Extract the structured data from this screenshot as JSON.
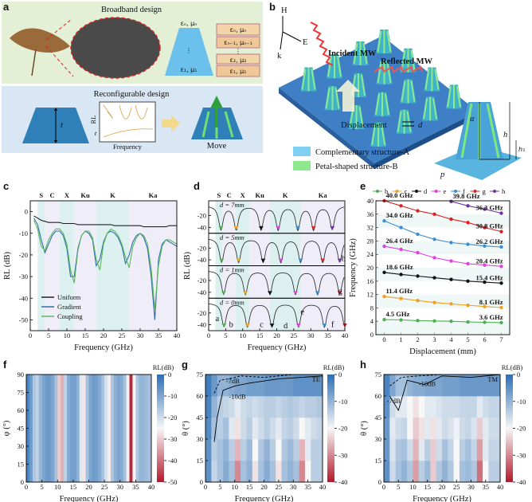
{
  "panel_labels": [
    "a",
    "b",
    "c",
    "d",
    "e",
    "f",
    "g",
    "h"
  ],
  "panel_a": {
    "title_top": "Broadband design",
    "title_bottom": "Reconfigurable design",
    "cone_labels": [
      "εₙ, μₙ",
      "⋮",
      "ε₁, μ₁"
    ],
    "layers": [
      "εₙ, μₙ",
      "εₙ₋₁, μₙ₋₁",
      "⋮",
      "ε₂, μ₂",
      "ε₁, μ₁"
    ],
    "inset_y": "RL",
    "inset_x": "Frequency",
    "inset_t": "t",
    "thickness": "t",
    "move": "Move"
  },
  "panel_b": {
    "axes": [
      "H",
      "E",
      "k"
    ],
    "incident": "Incident MW",
    "reflected": "Reflected MW",
    "displacement": "Displacement",
    "d": "d",
    "dims": [
      "α",
      "h",
      "h₁",
      "p"
    ],
    "legend": [
      {
        "name": "Complementary structure-A",
        "color": "#7fd0f0"
      },
      {
        "name": "Petal-shaped structure-B",
        "color": "#8ee88e"
      }
    ]
  },
  "chart_data": [
    {
      "type": "line",
      "xlabel": "Frequency (GHz)",
      "ylabel": "RL (dB)",
      "xlim": [
        0,
        40
      ],
      "xticks": [
        0,
        5,
        10,
        15,
        20,
        25,
        30,
        35,
        40
      ],
      "ylim": [
        -55,
        5
      ],
      "yticks": [
        0,
        -10,
        -20,
        -30,
        -40,
        -50
      ],
      "bands": [
        {
          "name": "S",
          "range": [
            2,
            4
          ]
        },
        {
          "name": "C",
          "range": [
            4,
            8
          ]
        },
        {
          "name": "X",
          "range": [
            8,
            12
          ]
        },
        {
          "name": "Ku",
          "range": [
            12,
            18
          ]
        },
        {
          "name": "K",
          "range": [
            18,
            27
          ]
        },
        {
          "name": "Ka",
          "range": [
            27,
            40
          ]
        }
      ],
      "band_colors": [
        "#dcf1ef",
        "#efedf7"
      ],
      "legend": "lower left",
      "x": [
        1,
        2,
        3,
        4,
        5,
        6,
        7,
        8,
        9,
        10,
        11,
        12,
        13,
        14,
        15,
        16,
        17,
        18,
        19,
        20,
        21,
        22,
        23,
        24,
        25,
        26,
        27,
        28,
        29,
        30,
        31,
        32,
        33,
        34,
        35,
        36,
        37,
        38,
        39,
        40
      ],
      "series": [
        {
          "name": "Uniform",
          "color": "#222222",
          "values": [
            -2,
            -3,
            -4,
            -4.5,
            -5,
            -5,
            -5,
            -5,
            -5.5,
            -5.5,
            -5.5,
            -5.5,
            -6,
            -6,
            -6,
            -6,
            -6,
            -6,
            -6,
            -6,
            -6,
            -6,
            -6.5,
            -6.5,
            -6.5,
            -6.5,
            -6.5,
            -6.5,
            -6.5,
            -6.5,
            -7,
            -7,
            -7,
            -7,
            -7,
            -7,
            -7,
            -6.5,
            -6.5,
            -6.5
          ]
        },
        {
          "name": "Gradient",
          "color": "#2f6fa8",
          "values": [
            -3,
            -6,
            -13,
            -19,
            -15,
            -11,
            -9,
            -9,
            -11,
            -17,
            -30,
            -30,
            -17,
            -11,
            -9,
            -10,
            -13,
            -25,
            -22,
            -14,
            -10,
            -9,
            -10,
            -12,
            -16,
            -24,
            -20,
            -14,
            -11,
            -10,
            -12,
            -17,
            -30,
            -50,
            -22,
            -15,
            -13,
            -14,
            -15,
            -16
          ]
        },
        {
          "name": "Coupling",
          "color": "#5cb85c",
          "values": [
            -4,
            -8,
            -16,
            -18,
            -13,
            -10,
            -8,
            -8,
            -10,
            -15,
            -27,
            -33,
            -18,
            -11,
            -9,
            -9,
            -12,
            -22,
            -27,
            -15,
            -10,
            -8,
            -9,
            -11,
            -15,
            -21,
            -26,
            -16,
            -12,
            -10,
            -11,
            -15,
            -26,
            -45,
            -25,
            -16,
            -13,
            -13,
            -14,
            -15
          ]
        }
      ]
    },
    {
      "type": "resonance",
      "xlabel": "Frequency (GHz)",
      "ylabel": "RL (dB)",
      "xlim": [
        0,
        40
      ],
      "xticks": [
        0,
        5,
        10,
        15,
        20,
        25,
        30,
        35,
        40
      ],
      "bands": [
        {
          "name": "S",
          "range": [
            2,
            4
          ]
        },
        {
          "name": "C",
          "range": [
            4,
            8
          ]
        },
        {
          "name": "X",
          "range": [
            8,
            12
          ]
        },
        {
          "name": "Ku",
          "range": [
            12,
            18
          ]
        },
        {
          "name": "K",
          "range": [
            18,
            27
          ]
        },
        {
          "name": "Ka",
          "range": [
            27,
            40
          ]
        }
      ],
      "band_colors": [
        "#dcf1ef",
        "#efedf7"
      ],
      "dip_colors": [
        "#4caf50",
        "#f0a020",
        "#111111",
        "#e040e0",
        "#3a8fd0",
        "#e02020",
        "#7030a0"
      ],
      "subplots": [
        {
          "label": "d = 7mm",
          "ylim": [
            -50,
            5
          ],
          "yticks": [
            -20,
            -40
          ],
          "dips": [
            3.6,
            8.1,
            15.4,
            20.4,
            26.2,
            30.8,
            36.3
          ]
        },
        {
          "label": "d = 5mm",
          "ylim": [
            -50,
            5
          ],
          "yticks": [
            -20,
            -40
          ],
          "dips": [
            3.8,
            8.8,
            16,
            21.2,
            27,
            33.5,
            38.5
          ]
        },
        {
          "label": "d = 1mm",
          "ylim": [
            -50,
            5
          ],
          "yticks": [
            -20,
            -40
          ],
          "dips": [
            4.4,
            10.8,
            18,
            25.5,
            32,
            38.5
          ]
        },
        {
          "label": "d = 0mm",
          "ylim": [
            -50,
            5
          ],
          "yticks": [
            -20,
            -40
          ],
          "dips": [
            4.5,
            11.4,
            18.6,
            26.4,
            34,
            40
          ]
        }
      ],
      "mode_labels": [
        "a",
        "b",
        "c",
        "d",
        "e",
        "f",
        "g",
        "h"
      ]
    },
    {
      "type": "line",
      "markers": true,
      "xlabel": "Displacement (mm)",
      "ylabel": "Frequency (GHz)",
      "xlim": [
        -0.5,
        7.5
      ],
      "xticks": [
        0,
        1,
        2,
        3,
        4,
        5,
        6,
        7
      ],
      "ylim": [
        0,
        40
      ],
      "yticks": [
        0,
        4,
        8,
        12,
        16,
        20,
        24,
        28,
        32,
        36,
        40
      ],
      "legend": "top",
      "x": [
        0,
        1,
        2,
        3,
        4,
        5,
        6,
        7
      ],
      "series": [
        {
          "name": "b",
          "color": "#4caf50",
          "values": [
            4.5,
            4.4,
            4.2,
            4.1,
            4.0,
            3.8,
            3.7,
            3.6
          ],
          "value_labels": [
            "4.5 GHz",
            null,
            null,
            null,
            null,
            null,
            null,
            "3.6 GHz"
          ]
        },
        {
          "name": "c",
          "color": "#f0a020",
          "values": [
            11.4,
            10.8,
            10.2,
            9.6,
            9.2,
            8.8,
            8.4,
            8.1
          ],
          "value_labels": [
            "11.4 GHz",
            null,
            null,
            null,
            null,
            null,
            null,
            "8.1 GHz"
          ]
        },
        {
          "name": "d",
          "color": "#111111",
          "values": [
            18.6,
            18,
            17.5,
            17,
            16.5,
            16,
            15.7,
            15.4
          ],
          "value_labels": [
            "18.6 GHz",
            null,
            null,
            null,
            null,
            null,
            null,
            "15.4 GHz"
          ]
        },
        {
          "name": "e",
          "color": "#e040e0",
          "values": [
            26.4,
            25.5,
            24.5,
            23,
            22,
            21.2,
            20.8,
            20.4
          ],
          "value_labels": [
            "26.4 GHz",
            null,
            null,
            null,
            null,
            null,
            null,
            "20.4 GHz"
          ]
        },
        {
          "name": "f",
          "color": "#3a8fd0",
          "values": [
            34.0,
            32,
            30,
            28.5,
            27.5,
            27,
            26.5,
            26.2
          ],
          "value_labels": [
            "34.0 GHz",
            null,
            null,
            null,
            null,
            null,
            null,
            "26.2 GHz"
          ]
        },
        {
          "name": "g",
          "color": "#e02020",
          "values": [
            40.0,
            38.5,
            37,
            36,
            34.5,
            33.5,
            32,
            30.8
          ],
          "value_labels": [
            "40.0 GHz",
            null,
            null,
            null,
            null,
            null,
            null,
            "30.8 GHz"
          ]
        },
        {
          "name": "h",
          "color": "#7030a0",
          "values": [
            null,
            null,
            null,
            null,
            39.8,
            38.5,
            37.5,
            36.3
          ],
          "value_labels": [
            null,
            null,
            null,
            null,
            "39.8 GHz",
            null,
            null,
            "36.3 GHz"
          ]
        }
      ]
    },
    {
      "type": "heatmap",
      "xlabel": "Frequency (GHz)",
      "ylabel": "φ (°)",
      "xlim": [
        0,
        40
      ],
      "xticks": [
        0,
        5,
        10,
        15,
        20,
        25,
        30,
        35,
        40
      ],
      "ylim": [
        0,
        90
      ],
      "yticks": [
        0,
        15,
        30,
        45,
        60,
        75,
        90
      ],
      "colorbar": {
        "label": "RL(dB)",
        "lim": [
          -50,
          0
        ],
        "ticks": [
          0,
          -10,
          -20,
          -30,
          -40,
          -50
        ]
      },
      "colormap": [
        "#b2182b",
        "#f7f7f7",
        "#2c6fb5"
      ],
      "xbins": [
        0,
        1,
        2,
        3,
        4,
        5,
        6,
        7,
        8,
        9,
        10,
        11,
        12,
        13,
        14,
        15,
        16,
        17,
        18,
        19,
        20,
        21,
        22,
        23,
        24,
        25,
        26,
        27,
        28,
        29,
        30,
        31,
        32,
        33,
        34,
        35,
        36,
        37,
        38,
        39,
        40
      ],
      "ybins": [
        0,
        90
      ],
      "values": [
        [
          -4,
          -8,
          -16,
          -18,
          -13,
          -10,
          -8,
          -8,
          -10,
          -15,
          -30,
          -33,
          -18,
          -11,
          -9,
          -9,
          -12,
          -22,
          -27,
          -15,
          -10,
          -8,
          -9,
          -11,
          -15,
          -21,
          -26,
          -16,
          -12,
          -10,
          -11,
          -15,
          -26,
          -48,
          -25,
          -16,
          -13,
          -13,
          -14,
          -15
        ]
      ]
    },
    {
      "type": "heatmap",
      "xlabel": "Frequency (GHz)",
      "ylabel": "θ (°)",
      "mode": "TE",
      "contour_labels": [
        "-7dB",
        "-10dB"
      ],
      "xlim": [
        0,
        40
      ],
      "xticks": [
        0,
        5,
        10,
        15,
        20,
        25,
        30,
        35,
        40
      ],
      "ylim": [
        0,
        75
      ],
      "yticks": [
        0,
        15,
        30,
        45,
        60,
        75
      ],
      "colorbar": {
        "label": "RL(dB)",
        "lim": [
          -40,
          0
        ],
        "ticks": [
          0,
          -10,
          -20,
          -30,
          -40
        ]
      },
      "colormap": [
        "#b2182b",
        "#f7f7f7",
        "#2c6fb5"
      ],
      "xbins": [
        0,
        2,
        4,
        6,
        8,
        10,
        12,
        14,
        16,
        18,
        20,
        22,
        24,
        26,
        28,
        30,
        32,
        34,
        36,
        38,
        40
      ],
      "ybins": [
        0,
        15,
        30,
        45,
        60,
        75
      ],
      "values": [
        [
          -5,
          -15,
          -12,
          -9,
          -12,
          -30,
          -12,
          -10,
          -22,
          -12,
          -9,
          -12,
          -22,
          -12,
          -10,
          -12,
          -30,
          -20,
          -14,
          -14
        ],
        [
          -5,
          -14,
          -12,
          -10,
          -14,
          -26,
          -14,
          -11,
          -20,
          -13,
          -10,
          -14,
          -20,
          -13,
          -11,
          -14,
          -26,
          -18,
          -14,
          -14
        ],
        [
          -4,
          -12,
          -14,
          -12,
          -18,
          -22,
          -16,
          -14,
          -18,
          -16,
          -14,
          -16,
          -18,
          -15,
          -14,
          -16,
          -20,
          -18,
          -16,
          -15
        ],
        [
          -3,
          -10,
          -14,
          -15,
          -16,
          -18,
          -16,
          -15,
          -16,
          -15,
          -14,
          -14,
          -15,
          -14,
          -13,
          -14,
          -15,
          -14,
          -14,
          -13
        ],
        [
          -2,
          -6,
          -10,
          -10,
          -9,
          -8,
          -8,
          -7,
          -7,
          -7,
          -6,
          -6,
          -6,
          -6,
          -6,
          -5,
          -5,
          -5,
          -5,
          -5
        ]
      ]
    },
    {
      "type": "heatmap",
      "xlabel": "Frequency (GHz)",
      "ylabel": "θ (°)",
      "mode": "TM",
      "contour_labels": [
        "-7dB",
        "-10dB"
      ],
      "xlim": [
        0,
        40
      ],
      "xticks": [
        0,
        5,
        10,
        15,
        20,
        25,
        30,
        35,
        40
      ],
      "ylim": [
        0,
        75
      ],
      "yticks": [
        0,
        15,
        30,
        45,
        60,
        75
      ],
      "colorbar": {
        "label": "RL(dB)",
        "lim": [
          -40,
          0
        ],
        "ticks": [
          0,
          -10,
          -20,
          -30,
          -40
        ]
      },
      "colormap": [
        "#b2182b",
        "#f7f7f7",
        "#2c6fb5"
      ],
      "xbins": [
        0,
        2,
        4,
        6,
        8,
        10,
        12,
        14,
        16,
        18,
        20,
        22,
        24,
        26,
        28,
        30,
        32,
        34,
        36,
        38,
        40
      ],
      "ybins": [
        0,
        15,
        30,
        45,
        60,
        75
      ],
      "values": [
        [
          -5,
          -16,
          -12,
          -10,
          -13,
          -28,
          -14,
          -11,
          -24,
          -13,
          -10,
          -13,
          -20,
          -12,
          -11,
          -13,
          -32,
          -20,
          -14,
          -14
        ],
        [
          -6,
          -17,
          -13,
          -12,
          -16,
          -26,
          -18,
          -14,
          -24,
          -16,
          -12,
          -15,
          -20,
          -14,
          -12,
          -15,
          -28,
          -18,
          -15,
          -15
        ],
        [
          -6,
          -18,
          -16,
          -15,
          -20,
          -24,
          -22,
          -18,
          -22,
          -18,
          -16,
          -17,
          -19,
          -16,
          -15,
          -17,
          -24,
          -18,
          -16,
          -16
        ],
        [
          -5,
          -16,
          -18,
          -18,
          -20,
          -22,
          -20,
          -18,
          -18,
          -17,
          -16,
          -16,
          -16,
          -15,
          -15,
          -15,
          -18,
          -16,
          -15,
          -15
        ],
        [
          -3,
          -8,
          -12,
          -12,
          -10,
          -9,
          -9,
          -8,
          -8,
          -8,
          -7,
          -7,
          -7,
          -6,
          -6,
          -6,
          -6,
          -6,
          -6,
          -6
        ]
      ]
    }
  ]
}
